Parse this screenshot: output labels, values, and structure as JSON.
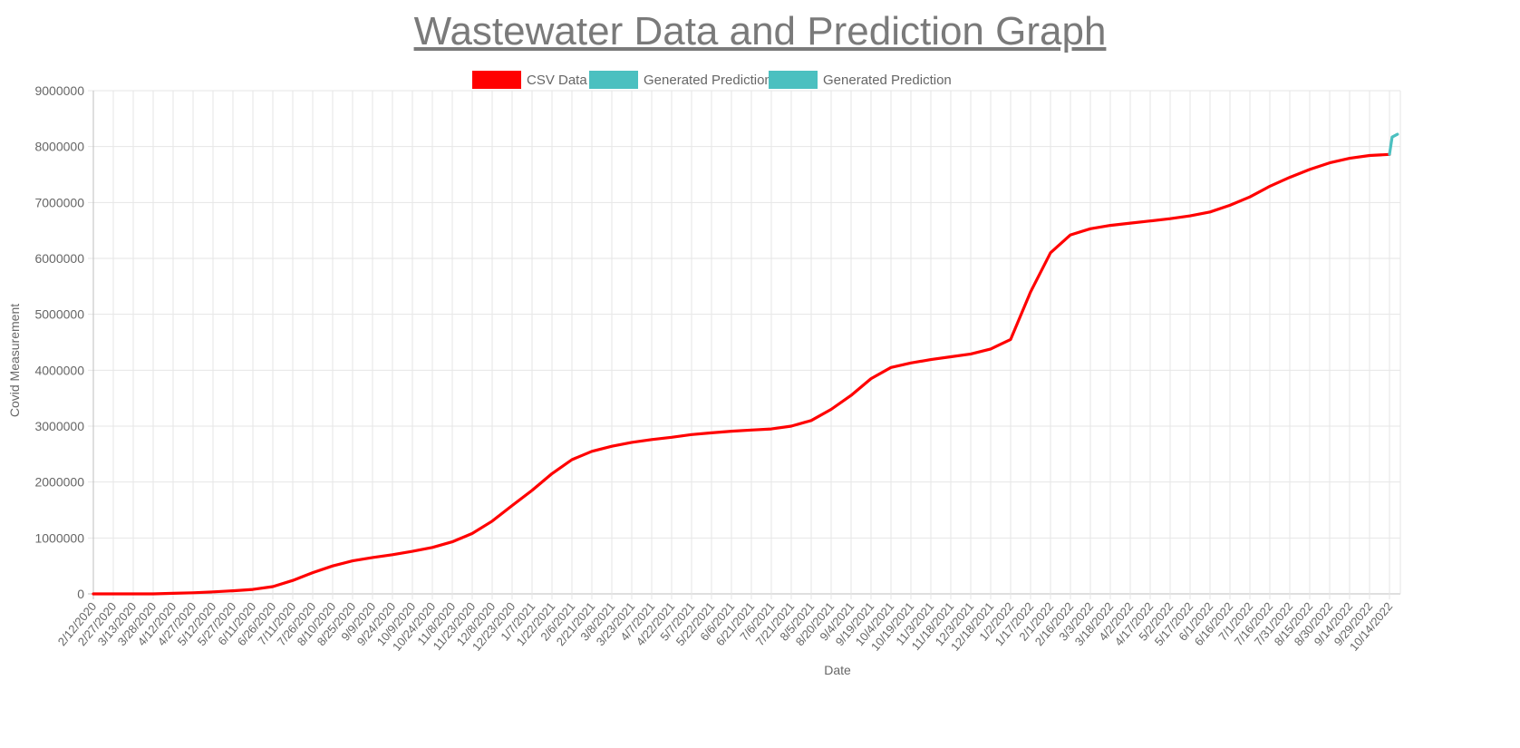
{
  "page": {
    "title": "Wastewater Data and Prediction Graph"
  },
  "legend": [
    {
      "label": "CSV Data",
      "color": "#ff0000"
    },
    {
      "label": "Generated Prediction",
      "color": "#4bc0c0"
    },
    {
      "label": "Generated Prediction",
      "color": "#4bc0c0"
    }
  ],
  "chart_data": {
    "type": "line",
    "title": "Wastewater Data and Prediction Graph",
    "xlabel": "Date",
    "ylabel": "Covid Measurement",
    "ylim": [
      0,
      9000000
    ],
    "yticks": [
      "9000000",
      "8000000",
      "7000000",
      "6000000",
      "5000000",
      "4000000",
      "3000000",
      "2000000",
      "1000000",
      "0"
    ],
    "grid": true,
    "legend_position": "top-center",
    "xticks": [
      "2/12/2020",
      "2/27/2020",
      "3/13/2020",
      "3/28/2020",
      "4/12/2020",
      "4/27/2020",
      "5/12/2020",
      "5/27/2020",
      "6/11/2020",
      "6/26/2020",
      "7/11/2020",
      "7/26/2020",
      "8/10/2020",
      "8/25/2020",
      "9/9/2020",
      "9/24/2020",
      "10/9/2020",
      "10/24/2020",
      "11/8/2020",
      "11/23/2020",
      "12/8/2020",
      "12/23/2020",
      "1/7/2021",
      "1/22/2021",
      "2/6/2021",
      "2/21/2021",
      "3/8/2021",
      "3/23/2021",
      "4/7/2021",
      "4/22/2021",
      "5/7/2021",
      "5/22/2021",
      "6/6/2021",
      "6/21/2021",
      "7/6/2021",
      "7/21/2021",
      "8/5/2021",
      "8/20/2021",
      "9/4/2021",
      "9/19/2021",
      "10/4/2021",
      "10/19/2021",
      "11/3/2021",
      "11/18/2021",
      "12/3/2021",
      "12/18/2021",
      "1/2/2022",
      "1/17/2022",
      "2/1/2022",
      "2/16/2022",
      "3/3/2022",
      "3/18/2022",
      "4/2/2022",
      "4/17/2022",
      "5/2/2022",
      "5/17/2022",
      "6/1/2022",
      "6/16/2022",
      "7/1/2022",
      "7/16/2022",
      "7/31/2022",
      "8/15/2022",
      "8/30/2022",
      "9/14/2022",
      "9/29/2022",
      "10/14/2022"
    ],
    "series": [
      {
        "name": "CSV Data",
        "color": "#ff0000",
        "points": [
          [
            "2/12/2020",
            0
          ],
          [
            "2/27/2020",
            0
          ],
          [
            "3/13/2020",
            0
          ],
          [
            "3/28/2020",
            0
          ],
          [
            "4/12/2020",
            10000
          ],
          [
            "4/27/2020",
            20000
          ],
          [
            "5/12/2020",
            35000
          ],
          [
            "5/27/2020",
            55000
          ],
          [
            "6/11/2020",
            80000
          ],
          [
            "6/26/2020",
            130000
          ],
          [
            "7/11/2020",
            240000
          ],
          [
            "7/26/2020",
            380000
          ],
          [
            "8/10/2020",
            500000
          ],
          [
            "8/25/2020",
            590000
          ],
          [
            "9/9/2020",
            650000
          ],
          [
            "9/24/2020",
            700000
          ],
          [
            "10/9/2020",
            760000
          ],
          [
            "10/24/2020",
            830000
          ],
          [
            "11/8/2020",
            930000
          ],
          [
            "11/23/2020",
            1080000
          ],
          [
            "12/8/2020",
            1300000
          ],
          [
            "12/23/2020",
            1580000
          ],
          [
            "1/7/2021",
            1850000
          ],
          [
            "1/22/2021",
            2150000
          ],
          [
            "2/6/2021",
            2400000
          ],
          [
            "2/21/2021",
            2550000
          ],
          [
            "3/8/2021",
            2640000
          ],
          [
            "3/23/2021",
            2710000
          ],
          [
            "4/7/2021",
            2760000
          ],
          [
            "4/22/2021",
            2800000
          ],
          [
            "5/7/2021",
            2850000
          ],
          [
            "5/22/2021",
            2880000
          ],
          [
            "6/6/2021",
            2910000
          ],
          [
            "6/21/2021",
            2930000
          ],
          [
            "7/6/2021",
            2950000
          ],
          [
            "7/21/2021",
            3000000
          ],
          [
            "8/5/2021",
            3100000
          ],
          [
            "8/20/2021",
            3300000
          ],
          [
            "9/4/2021",
            3550000
          ],
          [
            "9/19/2021",
            3850000
          ],
          [
            "10/4/2021",
            4050000
          ],
          [
            "10/19/2021",
            4130000
          ],
          [
            "11/3/2021",
            4190000
          ],
          [
            "11/18/2021",
            4240000
          ],
          [
            "12/3/2021",
            4290000
          ],
          [
            "12/18/2021",
            4380000
          ],
          [
            "1/2/2022",
            4550000
          ],
          [
            "1/17/2022",
            5400000
          ],
          [
            "2/1/2022",
            6100000
          ],
          [
            "2/16/2022",
            6420000
          ],
          [
            "3/3/2022",
            6530000
          ],
          [
            "3/18/2022",
            6590000
          ],
          [
            "4/2/2022",
            6630000
          ],
          [
            "4/17/2022",
            6670000
          ],
          [
            "5/2/2022",
            6710000
          ],
          [
            "5/17/2022",
            6760000
          ],
          [
            "6/1/2022",
            6830000
          ],
          [
            "6/16/2022",
            6950000
          ],
          [
            "7/1/2022",
            7100000
          ],
          [
            "7/16/2022",
            7290000
          ],
          [
            "7/31/2022",
            7450000
          ],
          [
            "8/15/2022",
            7590000
          ],
          [
            "8/30/2022",
            7710000
          ],
          [
            "9/14/2022",
            7790000
          ],
          [
            "9/29/2022",
            7840000
          ],
          [
            "10/14/2022",
            7860000
          ]
        ]
      },
      {
        "name": "Generated Prediction",
        "color": "#4bc0c0",
        "points": [
          [
            "10/14/2022",
            7860000
          ],
          [
            "10/16/2022",
            8170000
          ],
          [
            "10/20/2022",
            8220000
          ]
        ]
      }
    ]
  }
}
